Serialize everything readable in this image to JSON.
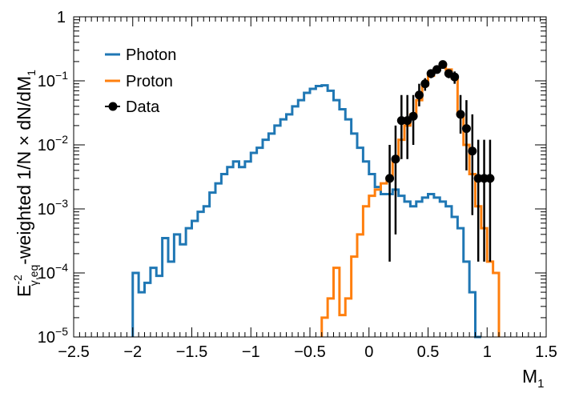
{
  "chart_data": {
    "type": "line",
    "subtype": "step-histogram",
    "yscale": "log",
    "xlim": [
      -2.5,
      1.5
    ],
    "ylim": [
      1e-05,
      1
    ],
    "xlabel": "M",
    "xlabel_sub": "1",
    "ylabel": {
      "base": "E",
      "sup": "-2",
      "sub": "γ,eq",
      "rest": "-weighted 1/N × dN/dM",
      "rest_sub": "1"
    },
    "x_ticks": [
      -2.5,
      -2,
      -1.5,
      -1,
      -0.5,
      0,
      0.5,
      1,
      1.5
    ],
    "x_tick_labels": [
      "−2.5",
      "−2",
      "−1.5",
      "−1",
      "−0.5",
      "0",
      "0.5",
      "1",
      "1.5"
    ],
    "y_ticks": [
      {
        "value": 1,
        "mantissa": "1",
        "exp": ""
      },
      {
        "value": 0.1,
        "mantissa": "10",
        "exp": "−1"
      },
      {
        "value": 0.01,
        "mantissa": "10",
        "exp": "−2"
      },
      {
        "value": 0.001,
        "mantissa": "10",
        "exp": "−3"
      },
      {
        "value": 0.0001,
        "mantissa": "10",
        "exp": "−4"
      },
      {
        "value": 1e-05,
        "mantissa": "10",
        "exp": "−5"
      }
    ],
    "bin_width": 0.05,
    "series": [
      {
        "name": "Photon",
        "color": "#1f77b4",
        "kind": "step",
        "bins": [
          [
            -2.0,
            0.0001
          ],
          [
            -1.95,
            5e-05
          ],
          [
            -1.9,
            7e-05
          ],
          [
            -1.85,
            0.00012
          ],
          [
            -1.8,
            9e-05
          ],
          [
            -1.75,
            0.00035
          ],
          [
            -1.7,
            0.00015
          ],
          [
            -1.65,
            0.0004
          ],
          [
            -1.6,
            0.00028
          ],
          [
            -1.55,
            0.0005
          ],
          [
            -1.5,
            0.00065
          ],
          [
            -1.45,
            0.0009
          ],
          [
            -1.4,
            0.0011
          ],
          [
            -1.35,
            0.0018
          ],
          [
            -1.3,
            0.0025
          ],
          [
            -1.25,
            0.0035
          ],
          [
            -1.2,
            0.0045
          ],
          [
            -1.15,
            0.0055
          ],
          [
            -1.1,
            0.0045
          ],
          [
            -1.05,
            0.0055
          ],
          [
            -1.0,
            0.0075
          ],
          [
            -0.95,
            0.009
          ],
          [
            -0.9,
            0.012
          ],
          [
            -0.85,
            0.015
          ],
          [
            -0.8,
            0.02
          ],
          [
            -0.75,
            0.025
          ],
          [
            -0.7,
            0.03
          ],
          [
            -0.65,
            0.04
          ],
          [
            -0.6,
            0.05
          ],
          [
            -0.55,
            0.065
          ],
          [
            -0.5,
            0.075
          ],
          [
            -0.45,
            0.083
          ],
          [
            -0.4,
            0.085
          ],
          [
            -0.35,
            0.07
          ],
          [
            -0.3,
            0.05
          ],
          [
            -0.25,
            0.036
          ],
          [
            -0.2,
            0.025
          ],
          [
            -0.15,
            0.015
          ],
          [
            -0.1,
            0.009
          ],
          [
            -0.05,
            0.0055
          ],
          [
            0.0,
            0.0035
          ],
          [
            0.05,
            0.0022
          ],
          [
            0.1,
            0.0017
          ],
          [
            0.15,
            0.0017
          ],
          [
            0.2,
            0.002
          ],
          [
            0.25,
            0.0016
          ],
          [
            0.3,
            0.0013
          ],
          [
            0.35,
            0.0011
          ],
          [
            0.4,
            0.0013
          ],
          [
            0.45,
            0.0015
          ],
          [
            0.5,
            0.0017
          ],
          [
            0.55,
            0.0015
          ],
          [
            0.6,
            0.0013
          ],
          [
            0.65,
            0.0011
          ],
          [
            0.7,
            0.00075
          ],
          [
            0.75,
            0.0005
          ],
          [
            0.8,
            0.00015
          ],
          [
            0.85,
            5e-05
          ],
          [
            0.9,
            1e-05
          ]
        ]
      },
      {
        "name": "Proton",
        "color": "#ff7f0e",
        "kind": "step",
        "bins": [
          [
            -0.4,
            2e-05
          ],
          [
            -0.35,
            4e-05
          ],
          [
            -0.3,
            0.00012
          ],
          [
            -0.25,
            2.2e-05
          ],
          [
            -0.2,
            4e-05
          ],
          [
            -0.15,
            0.00018
          ],
          [
            -0.1,
            0.0004
          ],
          [
            -0.05,
            0.0011
          ],
          [
            0.0,
            0.0016
          ],
          [
            0.05,
            0.002
          ],
          [
            0.1,
            0.0025
          ],
          [
            0.15,
            0.003
          ],
          [
            0.2,
            0.006
          ],
          [
            0.25,
            0.012
          ],
          [
            0.3,
            0.02
          ],
          [
            0.35,
            0.03
          ],
          [
            0.4,
            0.05
          ],
          [
            0.45,
            0.085
          ],
          [
            0.5,
            0.12
          ],
          [
            0.55,
            0.15
          ],
          [
            0.6,
            0.18
          ],
          [
            0.65,
            0.15
          ],
          [
            0.7,
            0.11
          ],
          [
            0.75,
            0.03
          ],
          [
            0.8,
            0.01
          ],
          [
            0.85,
            0.0035
          ],
          [
            0.9,
            0.0011
          ],
          [
            0.95,
            0.0005
          ],
          [
            1.0,
            0.00015
          ],
          [
            1.05,
            0.0001
          ]
        ]
      },
      {
        "name": "Data",
        "color": "#000000",
        "kind": "points",
        "points": [
          {
            "x": 0.175,
            "y": 0.003,
            "lo": 0.00015,
            "hi": 0.01
          },
          {
            "x": 0.225,
            "y": 0.006,
            "lo": 0.0004,
            "hi": 0.02
          },
          {
            "x": 0.275,
            "y": 0.024,
            "lo": 0.006,
            "hi": 0.06
          },
          {
            "x": 0.325,
            "y": 0.024,
            "lo": 0.006,
            "hi": 0.06
          },
          {
            "x": 0.375,
            "y": 0.028,
            "lo": 0.01,
            "hi": 0.06
          },
          {
            "x": 0.425,
            "y": 0.06,
            "lo": 0.04,
            "hi": 0.09
          },
          {
            "x": 0.475,
            "y": 0.09,
            "lo": 0.07,
            "hi": 0.11
          },
          {
            "x": 0.525,
            "y": 0.13,
            "lo": 0.11,
            "hi": 0.15
          },
          {
            "x": 0.575,
            "y": 0.15,
            "lo": 0.13,
            "hi": 0.17
          },
          {
            "x": 0.625,
            "y": 0.18,
            "lo": 0.16,
            "hi": 0.2
          },
          {
            "x": 0.675,
            "y": 0.13,
            "lo": 0.11,
            "hi": 0.15
          },
          {
            "x": 0.725,
            "y": 0.115,
            "lo": 0.09,
            "hi": 0.14
          },
          {
            "x": 0.775,
            "y": 0.03,
            "lo": 0.015,
            "hi": 0.06
          },
          {
            "x": 0.825,
            "y": 0.018,
            "lo": 0.004,
            "hi": 0.05
          },
          {
            "x": 0.875,
            "y": 0.008,
            "lo": 0.0008,
            "hi": 0.03
          },
          {
            "x": 0.925,
            "y": 0.003,
            "lo": 0.00015,
            "hi": 0.012
          },
          {
            "x": 0.975,
            "y": 0.003,
            "lo": 0.00015,
            "hi": 0.012
          },
          {
            "x": 1.025,
            "y": 0.003,
            "lo": 0.00015,
            "hi": 0.012
          }
        ]
      }
    ],
    "legend": {
      "position": "top-left",
      "entries": [
        "Photon",
        "Proton",
        "Data"
      ]
    }
  }
}
